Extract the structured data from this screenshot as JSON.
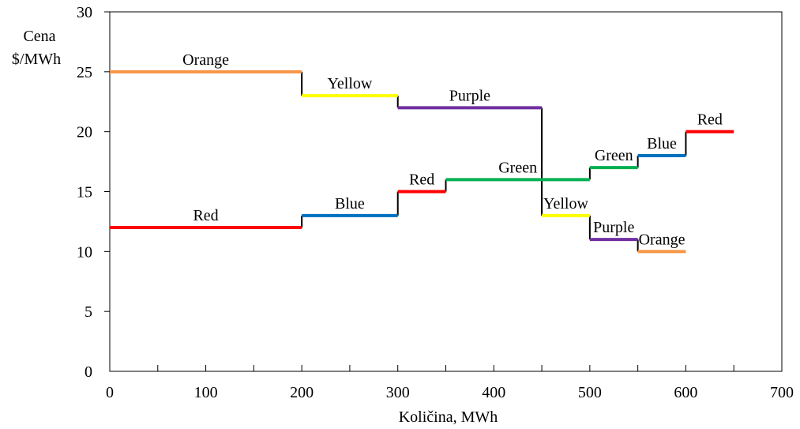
{
  "chart_data": {
    "type": "line",
    "title": "",
    "ylabel_line1": "Cena",
    "ylabel_line2": "$/MWh",
    "xlabel": "Količina, MWh",
    "xlim": [
      0,
      700
    ],
    "ylim": [
      0,
      30
    ],
    "x_ticks": [
      0,
      100,
      200,
      300,
      400,
      500,
      600,
      700
    ],
    "y_ticks": [
      0,
      5,
      10,
      15,
      20,
      25,
      30
    ],
    "x_minor_step": 50,
    "grid": false,
    "legend": "none",
    "series": [
      {
        "segments": [
          {
            "label": "Orange",
            "x0": 0,
            "x1": 200,
            "y": 25,
            "color": "#F79646"
          },
          {
            "label": "Yellow",
            "x0": 200,
            "x1": 300,
            "y": 23,
            "color": "#FFFF00"
          },
          {
            "label": "Purple",
            "x0": 300,
            "x1": 450,
            "y": 22,
            "color": "#7030A0"
          },
          {
            "label": "Yellow",
            "x0": 450,
            "x1": 500,
            "y": 13,
            "color": "#FFFF00"
          },
          {
            "label": "Purple",
            "x0": 500,
            "x1": 550,
            "y": 11,
            "color": "#7030A0"
          },
          {
            "label": "Orange",
            "x0": 550,
            "x1": 600,
            "y": 10,
            "color": "#F79646"
          }
        ]
      },
      {
        "segments": [
          {
            "label": "Red",
            "x0": 0,
            "x1": 200,
            "y": 12,
            "color": "#FF0000"
          },
          {
            "label": "Blue",
            "x0": 200,
            "x1": 300,
            "y": 13,
            "color": "#0070C0"
          },
          {
            "label": "Red",
            "x0": 300,
            "x1": 350,
            "y": 15,
            "color": "#FF0000"
          },
          {
            "label": "Green",
            "x0": 350,
            "x1": 500,
            "y": 16,
            "color": "#00B050"
          },
          {
            "label": "Green",
            "x0": 500,
            "x1": 550,
            "y": 17,
            "color": "#00B050"
          },
          {
            "label": "Blue",
            "x0": 550,
            "x1": 600,
            "y": 18,
            "color": "#0070C0"
          },
          {
            "label": "Red",
            "x0": 600,
            "x1": 650,
            "y": 20,
            "color": "#FF0000"
          }
        ]
      }
    ]
  }
}
